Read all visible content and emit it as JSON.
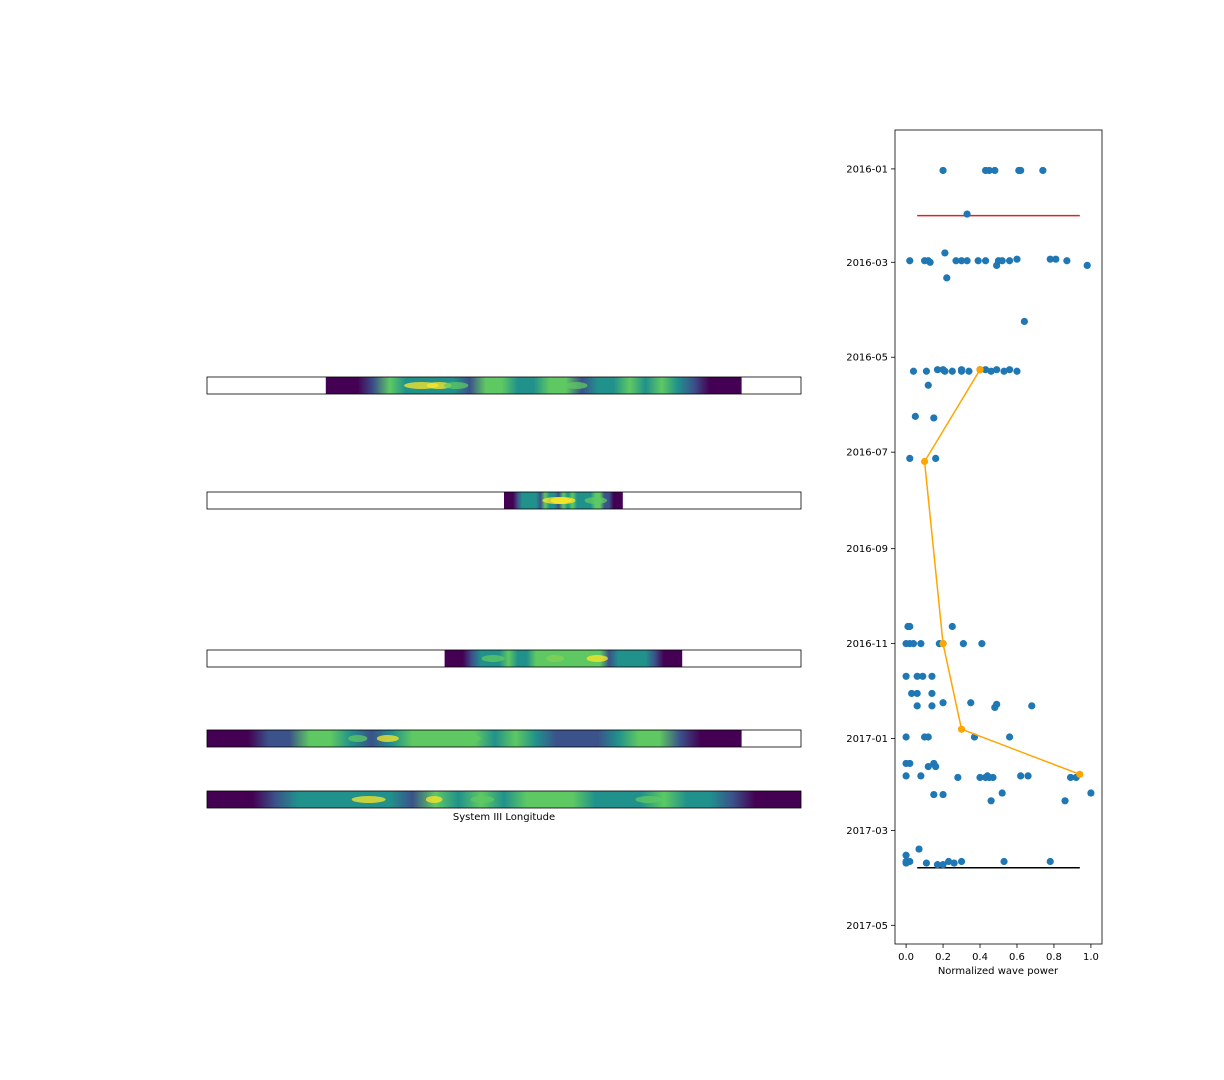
{
  "strips": {
    "xlabel": "System III Longitude",
    "colormap": [
      "#440154",
      "#3b528b",
      "#21918c",
      "#5ec962",
      "#fde725"
    ],
    "rows": [
      {
        "coverage": [
          0.2,
          0.9
        ],
        "intensity": 0.55
      },
      {
        "coverage": [
          0.5,
          0.7
        ],
        "intensity": 0.45
      },
      {
        "coverage": [
          0.4,
          0.8
        ],
        "intensity": 0.6
      },
      {
        "coverage": [
          0.0,
          0.9
        ],
        "intensity": 0.5
      },
      {
        "coverage": [
          0.0,
          1.0
        ],
        "intensity": 0.65
      }
    ]
  },
  "chart_data": {
    "type": "scatter",
    "xlabel": "Normalized wave power",
    "ylabel": "",
    "xlim": [
      -0.06,
      1.06
    ],
    "ylim": [
      "2016-04-29",
      "2015-12-07"
    ],
    "x_ticks": [
      "0.0",
      "0.2",
      "0.4",
      "0.6",
      "0.8",
      "1.0"
    ],
    "y_ticks": [
      "2016-01",
      "2016-03",
      "2016-05",
      "2016-07",
      "2016-09",
      "2016-11",
      "2017-01",
      "2017-03",
      "2017-05"
    ],
    "y_tick_dates": [
      "2016-01-01",
      "2016-03-01",
      "2016-05-01",
      "2016-07-01",
      "2016-09-01",
      "2016-11-01",
      "2017-01-01",
      "2017-03-01",
      "2017-05-01"
    ],
    "grid": false,
    "colors": {
      "points": "#1f77b4",
      "trend": "#ffa500",
      "start_line": "#d62728",
      "end_line": "#000000"
    },
    "points": [
      {
        "x": 0.2,
        "date": "2016-01-02"
      },
      {
        "x": 0.43,
        "date": "2016-01-02"
      },
      {
        "x": 0.45,
        "date": "2016-01-02"
      },
      {
        "x": 0.48,
        "date": "2016-01-02"
      },
      {
        "x": 0.61,
        "date": "2016-01-02"
      },
      {
        "x": 0.62,
        "date": "2016-01-02"
      },
      {
        "x": 0.74,
        "date": "2016-01-02"
      },
      {
        "x": 0.33,
        "date": "2016-01-30"
      },
      {
        "x": 0.21,
        "date": "2016-02-24"
      },
      {
        "x": 0.02,
        "date": "2016-02-29"
      },
      {
        "x": 0.1,
        "date": "2016-02-29"
      },
      {
        "x": 0.12,
        "date": "2016-02-29"
      },
      {
        "x": 0.13,
        "date": "2016-03-01"
      },
      {
        "x": 0.27,
        "date": "2016-02-29"
      },
      {
        "x": 0.3,
        "date": "2016-02-29"
      },
      {
        "x": 0.33,
        "date": "2016-02-29"
      },
      {
        "x": 0.39,
        "date": "2016-02-29"
      },
      {
        "x": 0.43,
        "date": "2016-02-29"
      },
      {
        "x": 0.5,
        "date": "2016-02-29"
      },
      {
        "x": 0.52,
        "date": "2016-02-29"
      },
      {
        "x": 0.56,
        "date": "2016-02-29"
      },
      {
        "x": 0.6,
        "date": "2016-02-28"
      },
      {
        "x": 0.78,
        "date": "2016-02-28"
      },
      {
        "x": 0.81,
        "date": "2016-02-28"
      },
      {
        "x": 0.87,
        "date": "2016-02-29"
      },
      {
        "x": 0.49,
        "date": "2016-03-03"
      },
      {
        "x": 0.98,
        "date": "2016-03-03"
      },
      {
        "x": 0.22,
        "date": "2016-03-11"
      },
      {
        "x": 0.64,
        "date": "2016-04-08"
      },
      {
        "x": 0.04,
        "date": "2016-05-10"
      },
      {
        "x": 0.11,
        "date": "2016-05-10"
      },
      {
        "x": 0.17,
        "date": "2016-05-09"
      },
      {
        "x": 0.2,
        "date": "2016-05-09"
      },
      {
        "x": 0.21,
        "date": "2016-05-10"
      },
      {
        "x": 0.25,
        "date": "2016-05-10"
      },
      {
        "x": 0.3,
        "date": "2016-05-09"
      },
      {
        "x": 0.3,
        "date": "2016-05-10"
      },
      {
        "x": 0.34,
        "date": "2016-05-10"
      },
      {
        "x": 0.4,
        "date": "2016-05-09"
      },
      {
        "x": 0.43,
        "date": "2016-05-09"
      },
      {
        "x": 0.46,
        "date": "2016-05-10"
      },
      {
        "x": 0.49,
        "date": "2016-05-09"
      },
      {
        "x": 0.53,
        "date": "2016-05-10"
      },
      {
        "x": 0.56,
        "date": "2016-05-09"
      },
      {
        "x": 0.6,
        "date": "2016-05-10"
      },
      {
        "x": 0.12,
        "date": "2016-05-19"
      },
      {
        "x": 0.05,
        "date": "2016-06-08"
      },
      {
        "x": 0.15,
        "date": "2016-06-09"
      },
      {
        "x": 0.02,
        "date": "2016-07-05"
      },
      {
        "x": 0.16,
        "date": "2016-07-05"
      },
      {
        "x": 0.01,
        "date": "2016-10-21"
      },
      {
        "x": 0.02,
        "date": "2016-10-21"
      },
      {
        "x": 0.25,
        "date": "2016-10-21"
      },
      {
        "x": 0.0,
        "date": "2016-11-01"
      },
      {
        "x": 0.02,
        "date": "2016-11-01"
      },
      {
        "x": 0.04,
        "date": "2016-11-01"
      },
      {
        "x": 0.08,
        "date": "2016-11-01"
      },
      {
        "x": 0.18,
        "date": "2016-11-01"
      },
      {
        "x": 0.2,
        "date": "2016-11-01"
      },
      {
        "x": 0.31,
        "date": "2016-11-01"
      },
      {
        "x": 0.41,
        "date": "2016-11-01"
      },
      {
        "x": 0.0,
        "date": "2016-11-22"
      },
      {
        "x": 0.06,
        "date": "2016-11-22"
      },
      {
        "x": 0.09,
        "date": "2016-11-22"
      },
      {
        "x": 0.14,
        "date": "2016-11-22"
      },
      {
        "x": 0.03,
        "date": "2016-12-03"
      },
      {
        "x": 0.06,
        "date": "2016-12-03"
      },
      {
        "x": 0.14,
        "date": "2016-12-03"
      },
      {
        "x": 0.06,
        "date": "2016-12-11"
      },
      {
        "x": 0.14,
        "date": "2016-12-11"
      },
      {
        "x": 0.2,
        "date": "2016-12-09"
      },
      {
        "x": 0.35,
        "date": "2016-12-09"
      },
      {
        "x": 0.49,
        "date": "2016-12-10"
      },
      {
        "x": 0.68,
        "date": "2016-12-11"
      },
      {
        "x": 0.48,
        "date": "2016-12-12"
      },
      {
        "x": 0.0,
        "date": "2016-12-31"
      },
      {
        "x": 0.1,
        "date": "2016-12-31"
      },
      {
        "x": 0.12,
        "date": "2016-12-31"
      },
      {
        "x": 0.37,
        "date": "2016-12-31"
      },
      {
        "x": 0.56,
        "date": "2016-12-31"
      },
      {
        "x": 0.0,
        "date": "2017-01-17"
      },
      {
        "x": 0.02,
        "date": "2017-01-17"
      },
      {
        "x": 0.15,
        "date": "2017-01-17"
      },
      {
        "x": 0.12,
        "date": "2017-01-19"
      },
      {
        "x": 0.16,
        "date": "2017-01-19"
      },
      {
        "x": 0.0,
        "date": "2017-01-25"
      },
      {
        "x": 0.08,
        "date": "2017-01-25"
      },
      {
        "x": 0.28,
        "date": "2017-01-26"
      },
      {
        "x": 0.4,
        "date": "2017-01-26"
      },
      {
        "x": 0.43,
        "date": "2017-01-26"
      },
      {
        "x": 0.44,
        "date": "2017-01-25"
      },
      {
        "x": 0.45,
        "date": "2017-01-26"
      },
      {
        "x": 0.47,
        "date": "2017-01-26"
      },
      {
        "x": 0.62,
        "date": "2017-01-25"
      },
      {
        "x": 0.66,
        "date": "2017-01-25"
      },
      {
        "x": 0.89,
        "date": "2017-01-26"
      },
      {
        "x": 0.92,
        "date": "2017-01-26"
      },
      {
        "x": 0.15,
        "date": "2017-02-06"
      },
      {
        "x": 0.2,
        "date": "2017-02-06"
      },
      {
        "x": 0.52,
        "date": "2017-02-05"
      },
      {
        "x": 1.0,
        "date": "2017-02-05"
      },
      {
        "x": 0.46,
        "date": "2017-02-10"
      },
      {
        "x": 0.86,
        "date": "2017-02-10"
      },
      {
        "x": 0.07,
        "date": "2017-03-13"
      },
      {
        "x": 0.0,
        "date": "2017-03-17"
      },
      {
        "x": 0.0,
        "date": "2017-03-22"
      },
      {
        "x": 0.02,
        "date": "2017-03-21"
      },
      {
        "x": 0.11,
        "date": "2017-03-22"
      },
      {
        "x": 0.17,
        "date": "2017-03-23"
      },
      {
        "x": 0.2,
        "date": "2017-03-23"
      },
      {
        "x": 0.23,
        "date": "2017-03-21"
      },
      {
        "x": 0.26,
        "date": "2017-03-22"
      },
      {
        "x": 0.3,
        "date": "2017-03-21"
      },
      {
        "x": 0.53,
        "date": "2017-03-21"
      },
      {
        "x": 0.78,
        "date": "2017-03-21"
      },
      {
        "x": 0.0,
        "date": "2017-03-21"
      }
    ],
    "trend": [
      {
        "x": 0.4,
        "date": "2016-05-09"
      },
      {
        "x": 0.1,
        "date": "2016-07-07"
      },
      {
        "x": 0.2,
        "date": "2016-11-01"
      },
      {
        "x": 0.3,
        "date": "2016-12-26"
      },
      {
        "x": 0.94,
        "date": "2017-01-24"
      }
    ],
    "start_line": {
      "x": [
        0.06,
        0.94
      ],
      "date": "2016-01-31"
    },
    "end_line": {
      "x": [
        0.06,
        0.94
      ],
      "date": "2017-03-25"
    }
  }
}
